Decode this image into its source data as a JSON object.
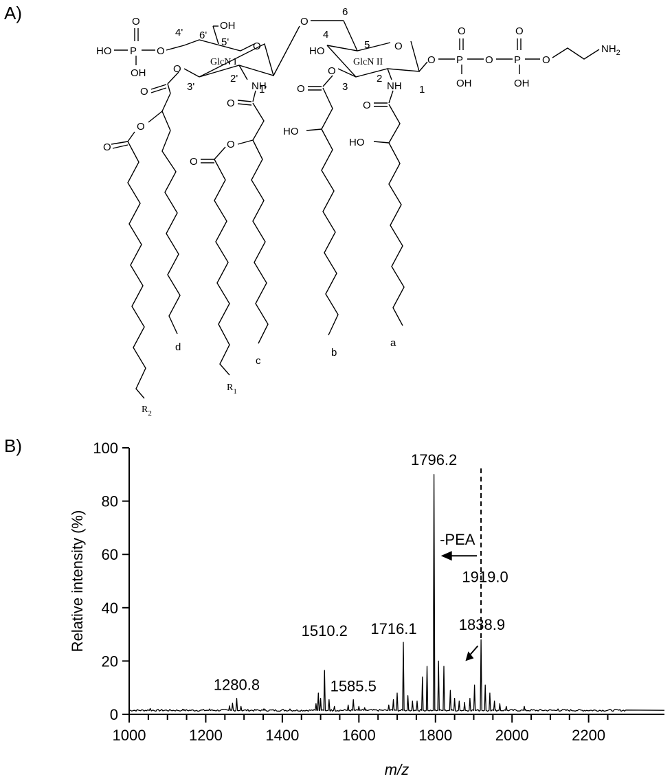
{
  "panels": {
    "a_label": "A)",
    "b_label": "B)"
  },
  "structure": {
    "phosphate_left": {
      "ho1": "HO",
      "ho2": "OH",
      "p": "P",
      "o_top": "O",
      "o_link": "O"
    },
    "glcn1": {
      "name": "GlcN I",
      "ring_o": "O",
      "oh6": "OH",
      "pos4": "4'",
      "pos6": "6'",
      "pos5": "5'",
      "pos3": "3'",
      "pos2": "2'",
      "pos1": "1'",
      "nh": "NH",
      "o3": "O"
    },
    "bridge": {
      "o": "O",
      "pos6": "6"
    },
    "glcn2": {
      "name": "GlcN II",
      "ring_o": "O",
      "ho4": "HO",
      "pos4": "4",
      "pos5": "5",
      "pos3": "3",
      "pos2": "2",
      "pos1": "1",
      "nh": "NH",
      "o3": "O"
    },
    "pyrophosphate": {
      "o1": "O",
      "p1": "P",
      "o_top1": "O",
      "oh1": "OH",
      "o2": "O",
      "p2": "P",
      "o_top2": "O",
      "oh2": "OH",
      "o3": "O",
      "nh2": "NH",
      "nh2_sub": "2"
    },
    "chains": {
      "carbonyl_o": "O",
      "ester_o": "O",
      "hydroxyl": "HO",
      "a": "a",
      "b": "b",
      "c": "c",
      "d": "d",
      "r1": "R",
      "r1_sub": "1",
      "r2": "R",
      "r2_sub": "2"
    }
  },
  "chart_data": {
    "type": "line",
    "xlabel": "m/z",
    "ylabel": "Relative intensity (%)",
    "xlim": [
      1000,
      2300
    ],
    "ylim": [
      0,
      100
    ],
    "xticks": [
      "1000",
      "1200",
      "1400",
      "1600",
      "1800",
      "2000",
      "2200"
    ],
    "yticks": [
      "0",
      "20",
      "40",
      "60",
      "80",
      "100"
    ],
    "baseline": 1.5,
    "peaks": [
      {
        "x": 1055,
        "y": 2.2
      },
      {
        "x": 1140,
        "y": 1.9
      },
      {
        "x": 1210,
        "y": 2.0
      },
      {
        "x": 1262,
        "y": 3.2
      },
      {
        "x": 1270,
        "y": 4.2
      },
      {
        "x": 1280.8,
        "y": 6.0
      },
      {
        "x": 1292,
        "y": 3.0
      },
      {
        "x": 1352,
        "y": 2.1
      },
      {
        "x": 1420,
        "y": 2.0
      },
      {
        "x": 1488,
        "y": 4.0
      },
      {
        "x": 1494,
        "y": 8.0
      },
      {
        "x": 1500,
        "y": 6.0
      },
      {
        "x": 1510.2,
        "y": 16.5
      },
      {
        "x": 1522,
        "y": 5.5
      },
      {
        "x": 1536,
        "y": 3.0
      },
      {
        "x": 1572,
        "y": 3.5
      },
      {
        "x": 1585.5,
        "y": 5.5
      },
      {
        "x": 1600,
        "y": 3.0
      },
      {
        "x": 1615,
        "y": 2.5
      },
      {
        "x": 1678,
        "y": 3.5
      },
      {
        "x": 1690,
        "y": 5.5
      },
      {
        "x": 1700,
        "y": 8.0
      },
      {
        "x": 1716.1,
        "y": 27.0
      },
      {
        "x": 1728,
        "y": 7.0
      },
      {
        "x": 1740,
        "y": 5.0
      },
      {
        "x": 1752,
        "y": 5.0
      },
      {
        "x": 1766,
        "y": 14.0
      },
      {
        "x": 1778,
        "y": 18.0
      },
      {
        "x": 1796.2,
        "y": 90.0
      },
      {
        "x": 1808,
        "y": 20.0
      },
      {
        "x": 1822,
        "y": 18.0
      },
      {
        "x": 1838.9,
        "y": 9.0
      },
      {
        "x": 1850,
        "y": 6.0
      },
      {
        "x": 1862,
        "y": 5.0
      },
      {
        "x": 1876,
        "y": 4.5
      },
      {
        "x": 1890,
        "y": 6.0
      },
      {
        "x": 1902,
        "y": 11.0
      },
      {
        "x": 1919.0,
        "y": 28.0
      },
      {
        "x": 1930,
        "y": 11.0
      },
      {
        "x": 1942,
        "y": 8.0
      },
      {
        "x": 1954,
        "y": 5.0
      },
      {
        "x": 1968,
        "y": 4.0
      },
      {
        "x": 1985,
        "y": 3.0
      },
      {
        "x": 2032,
        "y": 3.0
      },
      {
        "x": 2120,
        "y": 2.0
      }
    ],
    "peak_labels": [
      {
        "text": "1280.8",
        "x": 1280.8
      },
      {
        "text": "1510.2",
        "x": 1510.2
      },
      {
        "text": "1585.5",
        "x": 1585.5
      },
      {
        "text": "1716.1",
        "x": 1716.1
      },
      {
        "text": "1796.2",
        "x": 1796.2
      },
      {
        "text": "1838.9",
        "x": 1838.9
      },
      {
        "text": "1919.0",
        "x": 1919.0
      }
    ],
    "annotation": {
      "text": "-PEA",
      "from_x": 1919.0,
      "to_x": 1796.2,
      "y": 60
    }
  }
}
